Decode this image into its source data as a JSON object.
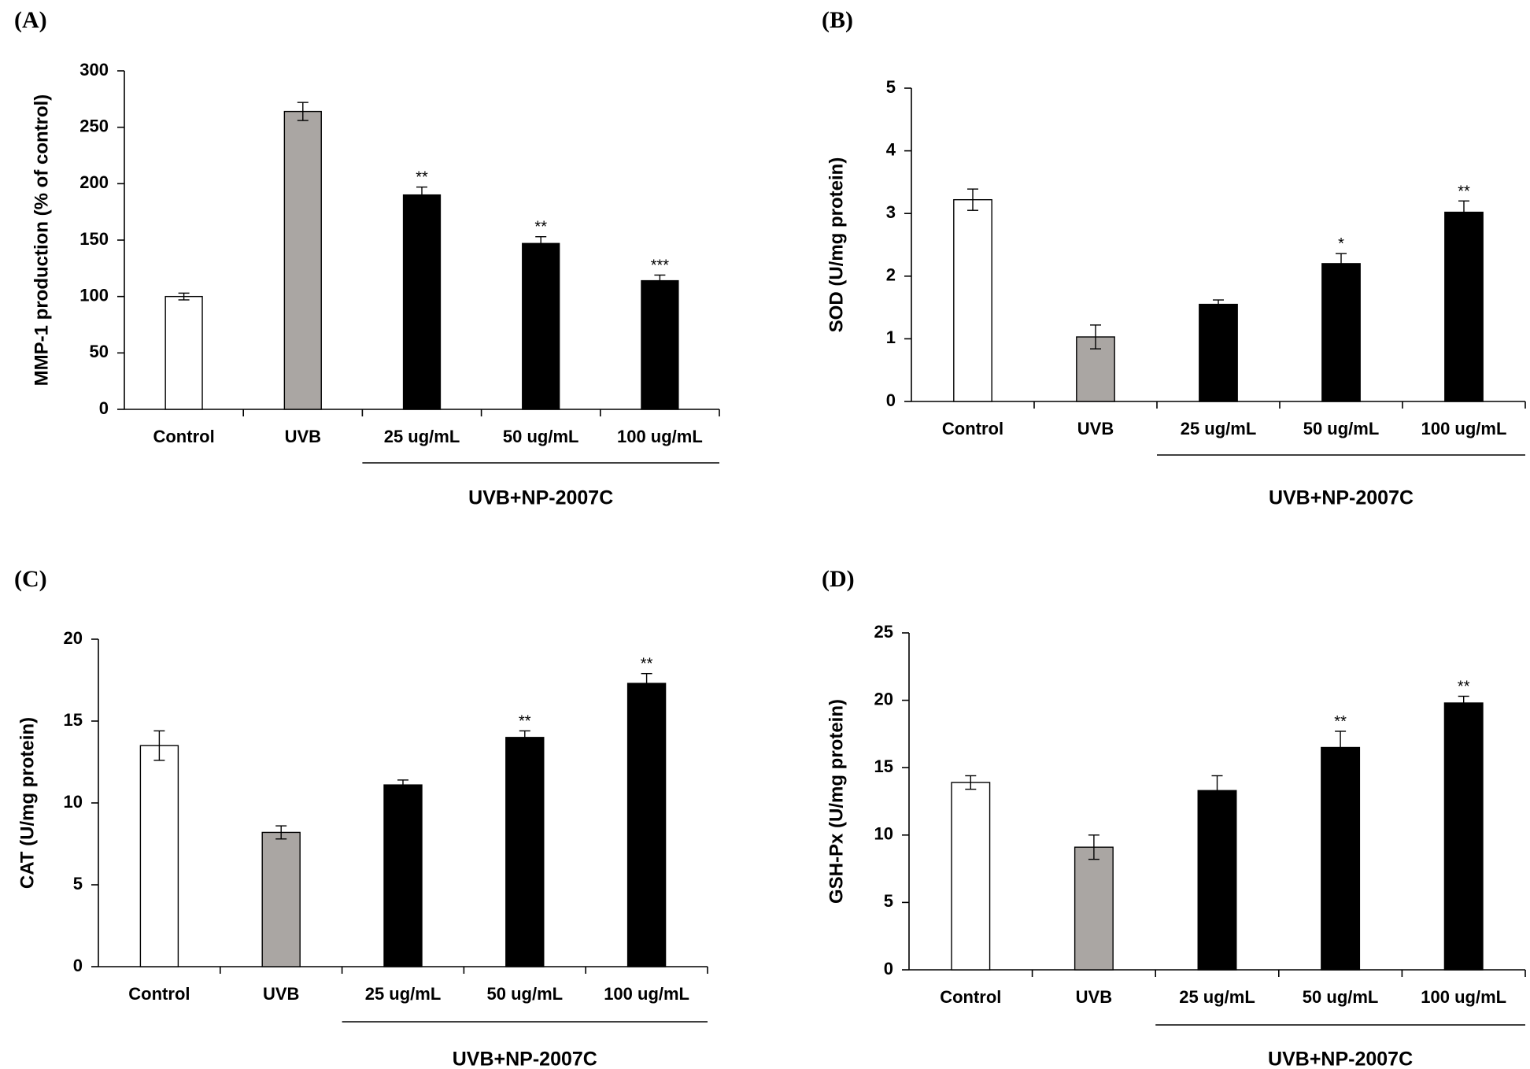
{
  "chart_data": [
    {
      "type": "bar",
      "panel_label": "(A)",
      "ylabel": "MMP-1 production (% of control)",
      "ylim": [
        0,
        300
      ],
      "yticks": [
        0,
        50,
        100,
        150,
        200,
        250,
        300
      ],
      "categories": [
        "Control",
        "UVB",
        "25 ug/mL",
        "50 ug/mL",
        "100 ug/mL"
      ],
      "group_label": "UVB+NP-2007C",
      "values": [
        100,
        264,
        190,
        147,
        114
      ],
      "errors": [
        3,
        8,
        7,
        6,
        5
      ],
      "significance": [
        "",
        "",
        "**",
        "**",
        "***"
      ],
      "bar_colors": [
        "#ffffff",
        "#aaa6a3",
        "#000000",
        "#000000",
        "#000000"
      ]
    },
    {
      "type": "bar",
      "panel_label": "(B)",
      "ylabel": "SOD (U/mg protein)",
      "ylim": [
        0,
        5
      ],
      "yticks": [
        0,
        1,
        2,
        3,
        4,
        5
      ],
      "categories": [
        "Control",
        "UVB",
        "25 ug/mL",
        "50 ug/mL",
        "100 ug/mL"
      ],
      "group_label": "UVB+NP-2007C",
      "values": [
        3.22,
        1.03,
        1.55,
        2.2,
        3.02
      ],
      "errors": [
        0.17,
        0.19,
        0.07,
        0.16,
        0.18
      ],
      "significance": [
        "",
        "",
        "",
        "*",
        "**"
      ],
      "bar_colors": [
        "#ffffff",
        "#aaa6a3",
        "#000000",
        "#000000",
        "#000000"
      ]
    },
    {
      "type": "bar",
      "panel_label": "(C)",
      "ylabel": "CAT (U/mg protein)",
      "ylim": [
        0,
        20
      ],
      "yticks": [
        0,
        5,
        10,
        15,
        20
      ],
      "categories": [
        "Control",
        "UVB",
        "25 ug/mL",
        "50 ug/mL",
        "100 ug/mL"
      ],
      "group_label": "UVB+NP-2007C",
      "values": [
        13.5,
        8.2,
        11.1,
        14.0,
        17.3
      ],
      "errors": [
        0.9,
        0.4,
        0.3,
        0.4,
        0.6
      ],
      "significance": [
        "",
        "",
        "",
        "**",
        "**"
      ],
      "bar_colors": [
        "#ffffff",
        "#aaa6a3",
        "#000000",
        "#000000",
        "#000000"
      ]
    },
    {
      "type": "bar",
      "panel_label": "(D)",
      "ylabel": "GSH-Px (U/mg protein)",
      "ylim": [
        0,
        25
      ],
      "yticks": [
        0,
        5,
        10,
        15,
        20,
        25
      ],
      "categories": [
        "Control",
        "UVB",
        "25 ug/mL",
        "50 ug/mL",
        "100 ug/mL"
      ],
      "group_label": "UVB+NP-2007C",
      "values": [
        13.9,
        9.1,
        13.3,
        16.5,
        19.8
      ],
      "errors": [
        0.5,
        0.9,
        1.1,
        1.2,
        0.5
      ],
      "significance": [
        "",
        "",
        "",
        "**",
        "**"
      ],
      "bar_colors": [
        "#ffffff",
        "#aaa6a3",
        "#000000",
        "#000000",
        "#000000"
      ]
    }
  ]
}
